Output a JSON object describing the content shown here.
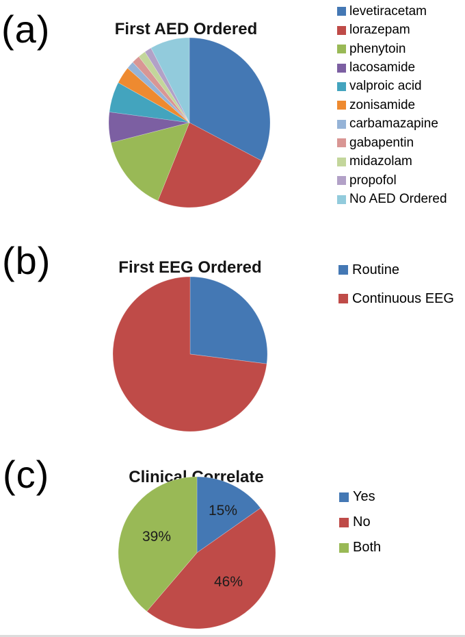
{
  "chart_data": [
    {
      "type": "pie",
      "panel_label": "(a)",
      "title": "First AED Ordered",
      "legend_position": "right",
      "start_angle_deg": 0,
      "direction": "clockwise",
      "labels": [
        "levetiracetam",
        "lorazepam",
        "phenytoin",
        "lacosamide",
        "valproic acid",
        "zonisamide",
        "carbamazapine",
        "gabapentin",
        "midazolam",
        "propofol",
        "No AED Ordered"
      ],
      "values": [
        32.4,
        24.0,
        14.8,
        5.8,
        5.8,
        3.3,
        1.5,
        1.6,
        1.5,
        1.4,
        7.9
      ],
      "colors": [
        "#4478B4",
        "#BF4B48",
        "#99B956",
        "#7C5FA2",
        "#43A4BE",
        "#EE8A30",
        "#95B3D7",
        "#D99694",
        "#C3D69B",
        "#B2A1C7",
        "#92CBDC"
      ],
      "value_labels": []
    },
    {
      "type": "pie",
      "panel_label": "(b)",
      "title": "First EEG Ordered",
      "legend_position": "right",
      "start_angle_deg": 0,
      "direction": "clockwise",
      "labels": [
        "Routine",
        "Continuous EEG"
      ],
      "values": [
        27,
        73
      ],
      "colors": [
        "#4478B4",
        "#BF4B48"
      ],
      "value_labels": []
    },
    {
      "type": "pie",
      "panel_label": "(c)",
      "title": "Clinical Correlate",
      "legend_position": "right",
      "start_angle_deg": 0,
      "direction": "clockwise",
      "labels": [
        "Yes",
        "No",
        "Both"
      ],
      "values": [
        15,
        46,
        39
      ],
      "colors": [
        "#4478B4",
        "#BF4B48",
        "#99B956"
      ],
      "value_labels": [
        "15%",
        "46%",
        "39%"
      ]
    }
  ]
}
